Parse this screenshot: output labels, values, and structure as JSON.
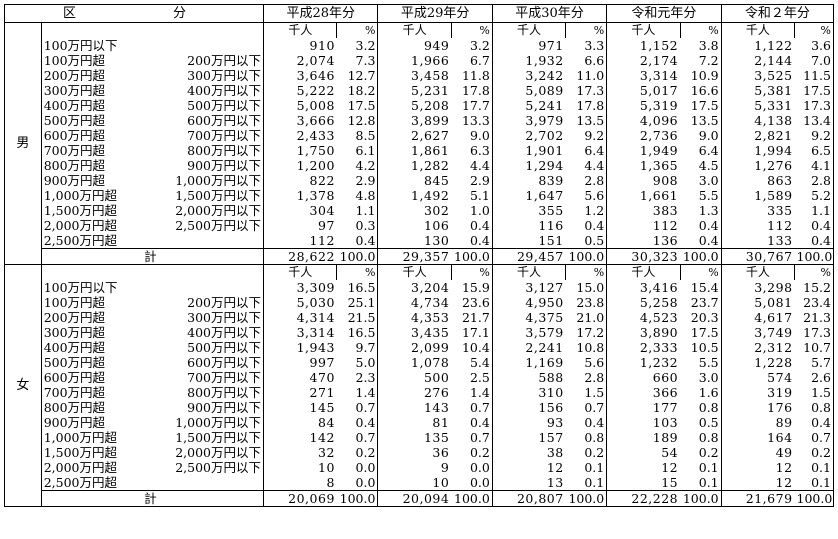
{
  "header": {
    "kubun": "区",
    "bun": "分",
    "years": [
      "平成28年分",
      "平成29年分",
      "平成30年分",
      "令和元年分",
      "令和２年分"
    ],
    "unit_count": "千人",
    "unit_pct": "%"
  },
  "sections": [
    {
      "sex": "男",
      "rows": [
        {
          "a": "100万円以下",
          "b": "",
          "values": [
            [
              "910",
              "3.2"
            ],
            [
              "949",
              "3.2"
            ],
            [
              "971",
              "3.3"
            ],
            [
              "1,152",
              "3.8"
            ],
            [
              "1,122",
              "3.6"
            ]
          ]
        },
        {
          "a": "100万円超",
          "b": "200万円以下",
          "values": [
            [
              "2,074",
              "7.3"
            ],
            [
              "1,966",
              "6.7"
            ],
            [
              "1,932",
              "6.6"
            ],
            [
              "2,174",
              "7.2"
            ],
            [
              "2,144",
              "7.0"
            ]
          ]
        },
        {
          "a": "200万円超",
          "b": "300万円以下",
          "values": [
            [
              "3,646",
              "12.7"
            ],
            [
              "3,458",
              "11.8"
            ],
            [
              "3,242",
              "11.0"
            ],
            [
              "3,314",
              "10.9"
            ],
            [
              "3,525",
              "11.5"
            ]
          ]
        },
        {
          "a": "300万円超",
          "b": "400万円以下",
          "values": [
            [
              "5,222",
              "18.2"
            ],
            [
              "5,231",
              "17.8"
            ],
            [
              "5,089",
              "17.3"
            ],
            [
              "5,017",
              "16.6"
            ],
            [
              "5,381",
              "17.5"
            ]
          ]
        },
        {
          "a": "400万円超",
          "b": "500万円以下",
          "values": [
            [
              "5,008",
              "17.5"
            ],
            [
              "5,208",
              "17.7"
            ],
            [
              "5,241",
              "17.8"
            ],
            [
              "5,319",
              "17.5"
            ],
            [
              "5,331",
              "17.3"
            ]
          ]
        },
        {
          "a": "500万円超",
          "b": "600万円以下",
          "values": [
            [
              "3,666",
              "12.8"
            ],
            [
              "3,899",
              "13.3"
            ],
            [
              "3,979",
              "13.5"
            ],
            [
              "4,096",
              "13.5"
            ],
            [
              "4,138",
              "13.4"
            ]
          ]
        },
        {
          "a": "600万円超",
          "b": "700万円以下",
          "values": [
            [
              "2,433",
              "8.5"
            ],
            [
              "2,627",
              "9.0"
            ],
            [
              "2,702",
              "9.2"
            ],
            [
              "2,736",
              "9.0"
            ],
            [
              "2,821",
              "9.2"
            ]
          ]
        },
        {
          "a": "700万円超",
          "b": "800万円以下",
          "values": [
            [
              "1,750",
              "6.1"
            ],
            [
              "1,861",
              "6.3"
            ],
            [
              "1,901",
              "6.4"
            ],
            [
              "1,949",
              "6.4"
            ],
            [
              "1,994",
              "6.5"
            ]
          ]
        },
        {
          "a": "800万円超",
          "b": "900万円以下",
          "values": [
            [
              "1,200",
              "4.2"
            ],
            [
              "1,282",
              "4.4"
            ],
            [
              "1,294",
              "4.4"
            ],
            [
              "1,365",
              "4.5"
            ],
            [
              "1,276",
              "4.1"
            ]
          ]
        },
        {
          "a": "900万円超",
          "b": "1,000万円以下",
          "values": [
            [
              "822",
              "2.9"
            ],
            [
              "845",
              "2.9"
            ],
            [
              "839",
              "2.8"
            ],
            [
              "908",
              "3.0"
            ],
            [
              "863",
              "2.8"
            ]
          ]
        },
        {
          "a": "1,000万円超",
          "b": "1,500万円以下",
          "values": [
            [
              "1,378",
              "4.8"
            ],
            [
              "1,492",
              "5.1"
            ],
            [
              "1,647",
              "5.6"
            ],
            [
              "1,661",
              "5.5"
            ],
            [
              "1,589",
              "5.2"
            ]
          ]
        },
        {
          "a": "1,500万円超",
          "b": "2,000万円以下",
          "values": [
            [
              "304",
              "1.1"
            ],
            [
              "302",
              "1.0"
            ],
            [
              "355",
              "1.2"
            ],
            [
              "383",
              "1.3"
            ],
            [
              "335",
              "1.1"
            ]
          ]
        },
        {
          "a": "2,000万円超",
          "b": "2,500万円以下",
          "values": [
            [
              "97",
              "0.3"
            ],
            [
              "106",
              "0.4"
            ],
            [
              "116",
              "0.4"
            ],
            [
              "112",
              "0.4"
            ],
            [
              "112",
              "0.4"
            ]
          ]
        },
        {
          "a": "2,500万円超",
          "b": "",
          "values": [
            [
              "112",
              "0.4"
            ],
            [
              "130",
              "0.4"
            ],
            [
              "151",
              "0.5"
            ],
            [
              "136",
              "0.4"
            ],
            [
              "133",
              "0.4"
            ]
          ]
        }
      ],
      "total": {
        "label": "計",
        "values": [
          [
            "28,622",
            "100.0"
          ],
          [
            "29,357",
            "100.0"
          ],
          [
            "29,457",
            "100.0"
          ],
          [
            "30,323",
            "100.0"
          ],
          [
            "30,767",
            "100.0"
          ]
        ]
      }
    },
    {
      "sex": "女",
      "rows": [
        {
          "a": "100万円以下",
          "b": "",
          "values": [
            [
              "3,309",
              "16.5"
            ],
            [
              "3,204",
              "15.9"
            ],
            [
              "3,127",
              "15.0"
            ],
            [
              "3,416",
              "15.4"
            ],
            [
              "3,298",
              "15.2"
            ]
          ]
        },
        {
          "a": "100万円超",
          "b": "200万円以下",
          "values": [
            [
              "5,030",
              "25.1"
            ],
            [
              "4,734",
              "23.6"
            ],
            [
              "4,950",
              "23.8"
            ],
            [
              "5,258",
              "23.7"
            ],
            [
              "5,081",
              "23.4"
            ]
          ]
        },
        {
          "a": "200万円超",
          "b": "300万円以下",
          "values": [
            [
              "4,314",
              "21.5"
            ],
            [
              "4,353",
              "21.7"
            ],
            [
              "4,375",
              "21.0"
            ],
            [
              "4,523",
              "20.3"
            ],
            [
              "4,617",
              "21.3"
            ]
          ]
        },
        {
          "a": "300万円超",
          "b": "400万円以下",
          "values": [
            [
              "3,314",
              "16.5"
            ],
            [
              "3,435",
              "17.1"
            ],
            [
              "3,579",
              "17.2"
            ],
            [
              "3,890",
              "17.5"
            ],
            [
              "3,749",
              "17.3"
            ]
          ]
        },
        {
          "a": "400万円超",
          "b": "500万円以下",
          "values": [
            [
              "1,943",
              "9.7"
            ],
            [
              "2,099",
              "10.4"
            ],
            [
              "2,241",
              "10.8"
            ],
            [
              "2,333",
              "10.5"
            ],
            [
              "2,312",
              "10.7"
            ]
          ]
        },
        {
          "a": "500万円超",
          "b": "600万円以下",
          "values": [
            [
              "997",
              "5.0"
            ],
            [
              "1,078",
              "5.4"
            ],
            [
              "1,169",
              "5.6"
            ],
            [
              "1,232",
              "5.5"
            ],
            [
              "1,228",
              "5.7"
            ]
          ]
        },
        {
          "a": "600万円超",
          "b": "700万円以下",
          "values": [
            [
              "470",
              "2.3"
            ],
            [
              "500",
              "2.5"
            ],
            [
              "588",
              "2.8"
            ],
            [
              "660",
              "3.0"
            ],
            [
              "574",
              "2.6"
            ]
          ]
        },
        {
          "a": "700万円超",
          "b": "800万円以下",
          "values": [
            [
              "271",
              "1.4"
            ],
            [
              "276",
              "1.4"
            ],
            [
              "310",
              "1.5"
            ],
            [
              "366",
              "1.6"
            ],
            [
              "319",
              "1.5"
            ]
          ]
        },
        {
          "a": "800万円超",
          "b": "900万円以下",
          "values": [
            [
              "145",
              "0.7"
            ],
            [
              "143",
              "0.7"
            ],
            [
              "156",
              "0.7"
            ],
            [
              "177",
              "0.8"
            ],
            [
              "176",
              "0.8"
            ]
          ]
        },
        {
          "a": "900万円超",
          "b": "1,000万円以下",
          "values": [
            [
              "84",
              "0.4"
            ],
            [
              "81",
              "0.4"
            ],
            [
              "93",
              "0.4"
            ],
            [
              "103",
              "0.5"
            ],
            [
              "89",
              "0.4"
            ]
          ]
        },
        {
          "a": "1,000万円超",
          "b": "1,500万円以下",
          "values": [
            [
              "142",
              "0.7"
            ],
            [
              "135",
              "0.7"
            ],
            [
              "157",
              "0.8"
            ],
            [
              "189",
              "0.8"
            ],
            [
              "164",
              "0.7"
            ]
          ]
        },
        {
          "a": "1,500万円超",
          "b": "2,000万円以下",
          "values": [
            [
              "32",
              "0.2"
            ],
            [
              "36",
              "0.2"
            ],
            [
              "38",
              "0.2"
            ],
            [
              "54",
              "0.2"
            ],
            [
              "49",
              "0.2"
            ]
          ]
        },
        {
          "a": "2,000万円超",
          "b": "2,500万円以下",
          "values": [
            [
              "10",
              "0.0"
            ],
            [
              "9",
              "0.0"
            ],
            [
              "12",
              "0.1"
            ],
            [
              "12",
              "0.1"
            ],
            [
              "12",
              "0.1"
            ]
          ]
        },
        {
          "a": "2,500万円超",
          "b": "",
          "values": [
            [
              "8",
              "0.0"
            ],
            [
              "10",
              "0.0"
            ],
            [
              "13",
              "0.1"
            ],
            [
              "15",
              "0.1"
            ],
            [
              "12",
              "0.1"
            ]
          ]
        }
      ],
      "total": {
        "label": "計",
        "values": [
          [
            "20,069",
            "100.0"
          ],
          [
            "20,094",
            "100.0"
          ],
          [
            "20,807",
            "100.0"
          ],
          [
            "22,228",
            "100.0"
          ],
          [
            "21,679",
            "100.0"
          ]
        ]
      }
    }
  ]
}
